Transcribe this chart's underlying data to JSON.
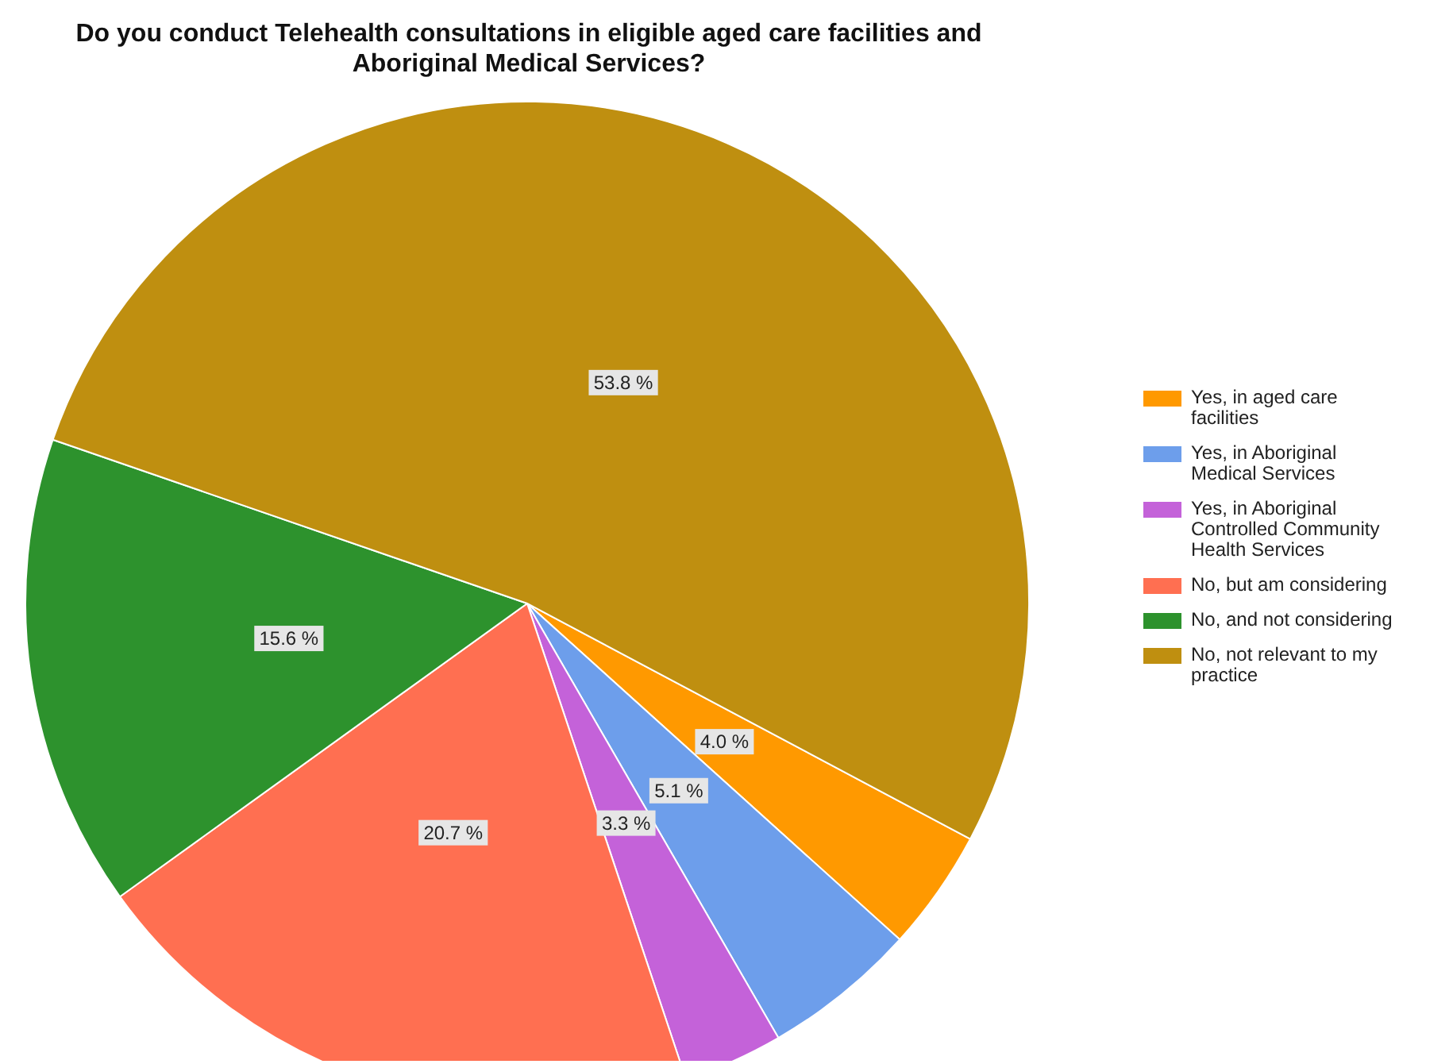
{
  "chart_data": {
    "type": "pie",
    "title": "Do you conduct Telehealth consultations in eligible aged care facilities and Aboriginal Medical Services?",
    "categories": [
      "Yes, in aged care facilities",
      "Yes, in Aboriginal Medical Services",
      "Yes, in Aboriginal Controlled Community Health Services",
      "No, but am considering",
      "No, and not considering",
      "No, not relevant to my practice"
    ],
    "values": [
      4.0,
      5.1,
      3.3,
      20.7,
      15.6,
      53.8
    ],
    "colors": [
      "#ff9900",
      "#6d9eeb",
      "#c462d9",
      "#ff6f51",
      "#2d922d",
      "#bf8f10"
    ],
    "value_labels": [
      "4.0 %",
      "5.1 %",
      "3.3 %",
      "20.7 %",
      "15.6 %",
      "53.8 %"
    ],
    "legend": "right"
  }
}
